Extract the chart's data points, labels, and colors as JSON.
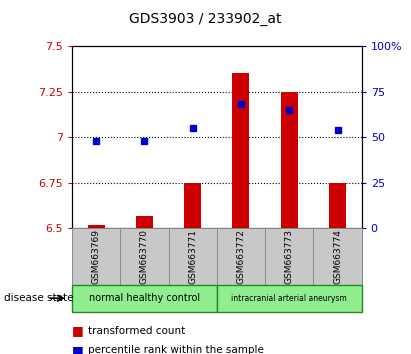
{
  "title": "GDS3903 / 233902_at",
  "samples": [
    "GSM663769",
    "GSM663770",
    "GSM663771",
    "GSM663772",
    "GSM663773",
    "GSM663774"
  ],
  "transformed_count": [
    6.52,
    6.57,
    6.75,
    7.35,
    7.25,
    6.75
  ],
  "percentile_rank": [
    48,
    48,
    55,
    68,
    65,
    54
  ],
  "ylim_left": [
    6.5,
    7.5
  ],
  "ylim_right": [
    0,
    100
  ],
  "yticks_left": [
    6.5,
    6.75,
    7.0,
    7.25,
    7.5
  ],
  "ytick_labels_left": [
    "6.5",
    "6.75",
    "7",
    "7.25",
    "7.5"
  ],
  "yticks_right": [
    0,
    25,
    50,
    75,
    100
  ],
  "ytick_labels_right": [
    "0",
    "25",
    "50",
    "75",
    "100%"
  ],
  "group_ranges": [
    [
      0,
      2,
      "normal healthy control"
    ],
    [
      3,
      5,
      "intracranial arterial aneurysm"
    ]
  ],
  "disease_state_label": "disease state",
  "bar_color": "#CC0000",
  "dot_color": "#0000CC",
  "sample_box_color": "#C8C8C8",
  "group_box_color": "#90EE90",
  "group_border_color": "#228B22",
  "label_tc": "transformed count",
  "label_pr": "percentile rank within the sample",
  "bar_width": 0.35
}
